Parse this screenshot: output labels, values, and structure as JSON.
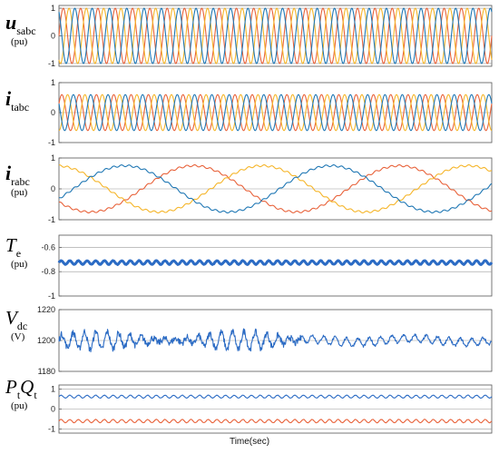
{
  "colors": {
    "phase_a": "#e8623a",
    "phase_b": "#f5b529",
    "phase_c": "#1f77b4",
    "p_trace": "#2b6bc4",
    "q_trace": "#e8623a"
  },
  "xlabel": "Time(sec)",
  "chart_data": [
    {
      "type": "line",
      "id": "usabc",
      "label_symbol": "u",
      "label_sub": "sabc",
      "label_unit": "(pu)",
      "ylim": [
        -1.1,
        1.1
      ],
      "yticks": [
        "1",
        "0",
        "-1"
      ],
      "ytick_values": [
        1,
        0,
        -1
      ],
      "grid_y": [
        1,
        0,
        -1
      ],
      "series": [
        {
          "kind": "sine",
          "amplitude": 1.0,
          "cycles": 25,
          "phase_deg": 0,
          "color_key": "phase_a"
        },
        {
          "kind": "sine",
          "amplitude": 1.0,
          "cycles": 25,
          "phase_deg": -120,
          "color_key": "phase_b"
        },
        {
          "kind": "sine",
          "amplitude": 1.0,
          "cycles": 25,
          "phase_deg": 120,
          "color_key": "phase_c"
        }
      ]
    },
    {
      "type": "line",
      "id": "itabc",
      "label_symbol": "i",
      "label_sub": "tabc",
      "label_unit": "",
      "ylim": [
        -1.0,
        1.0
      ],
      "yticks": [
        "1",
        "0",
        "-1"
      ],
      "ytick_values": [
        1,
        0,
        -1
      ],
      "grid_y": [
        0
      ],
      "series": [
        {
          "kind": "sine",
          "amplitude": 0.6,
          "cycles": 25,
          "phase_deg": 30,
          "color_key": "phase_a"
        },
        {
          "kind": "sine",
          "amplitude": 0.6,
          "cycles": 25,
          "phase_deg": -90,
          "color_key": "phase_b"
        },
        {
          "kind": "sine",
          "amplitude": 0.6,
          "cycles": 25,
          "phase_deg": 150,
          "color_key": "phase_c"
        }
      ]
    },
    {
      "type": "line",
      "id": "irabc",
      "label_symbol": "i",
      "label_sub": "rabc",
      "label_unit": "(pu)",
      "ylim": [
        -1.0,
        1.0
      ],
      "yticks": [
        "1",
        "0",
        "-1"
      ],
      "ytick_values": [
        1,
        0,
        -1
      ],
      "grid_y": [
        0
      ],
      "series": [
        {
          "kind": "sine",
          "amplitude": 0.75,
          "cycles": 2.1,
          "phase_deg": 215,
          "ripple": 0.03,
          "color_key": "phase_a"
        },
        {
          "kind": "sine",
          "amplitude": 0.75,
          "cycles": 2.1,
          "phase_deg": 95,
          "ripple": 0.03,
          "color_key": "phase_b"
        },
        {
          "kind": "sine",
          "amplitude": 0.75,
          "cycles": 2.1,
          "phase_deg": -25,
          "ripple": 0.03,
          "color_key": "phase_c"
        }
      ]
    },
    {
      "type": "line",
      "id": "te",
      "label_symbol": "T",
      "label_sub": "e",
      "label_unit": "(pu)",
      "ylim": [
        -1.0,
        -0.5
      ],
      "yticks": [
        "-0.6",
        "-0.8",
        "-1"
      ],
      "ytick_values": [
        -0.6,
        -0.8,
        -1
      ],
      "grid_y": [
        -0.6,
        -0.8
      ],
      "series": [
        {
          "kind": "ripple",
          "mean": -0.725,
          "amplitude": 0.015,
          "cycles": 50,
          "thick": 3,
          "color_key": "p_trace"
        }
      ]
    },
    {
      "type": "line",
      "id": "vdc",
      "label_symbol": "V",
      "label_sub": "dc",
      "label_unit": "(V)",
      "ylim": [
        1180,
        1220
      ],
      "yticks": [
        "1220",
        "1200",
        "1180"
      ],
      "ytick_values": [
        1220,
        1200,
        1180
      ],
      "grid_y": [
        1200
      ],
      "series": [
        {
          "kind": "noisy",
          "mean": 1200,
          "amplitude": 6,
          "amplitude_late": 2.5,
          "switch_frac": 0.56,
          "cycles": 38,
          "color_key": "p_trace"
        }
      ]
    },
    {
      "type": "line",
      "id": "ptqt",
      "label_symbol": "P",
      "label_sub": "t",
      "label_symbol2": "Q",
      "label_sub2": "t",
      "label_unit": "(pu)",
      "ylim": [
        -1.2,
        1.2
      ],
      "yticks": [
        "1",
        "0",
        "-1"
      ],
      "ytick_values": [
        1,
        0,
        -1
      ],
      "grid_y": [
        1,
        0,
        -1
      ],
      "series": [
        {
          "kind": "ripple",
          "mean": 0.62,
          "amplitude": 0.07,
          "cycles": 50,
          "color_key": "p_trace"
        },
        {
          "kind": "ripple",
          "mean": -0.6,
          "amplitude": 0.08,
          "cycles": 50,
          "color_key": "q_trace"
        }
      ]
    }
  ]
}
